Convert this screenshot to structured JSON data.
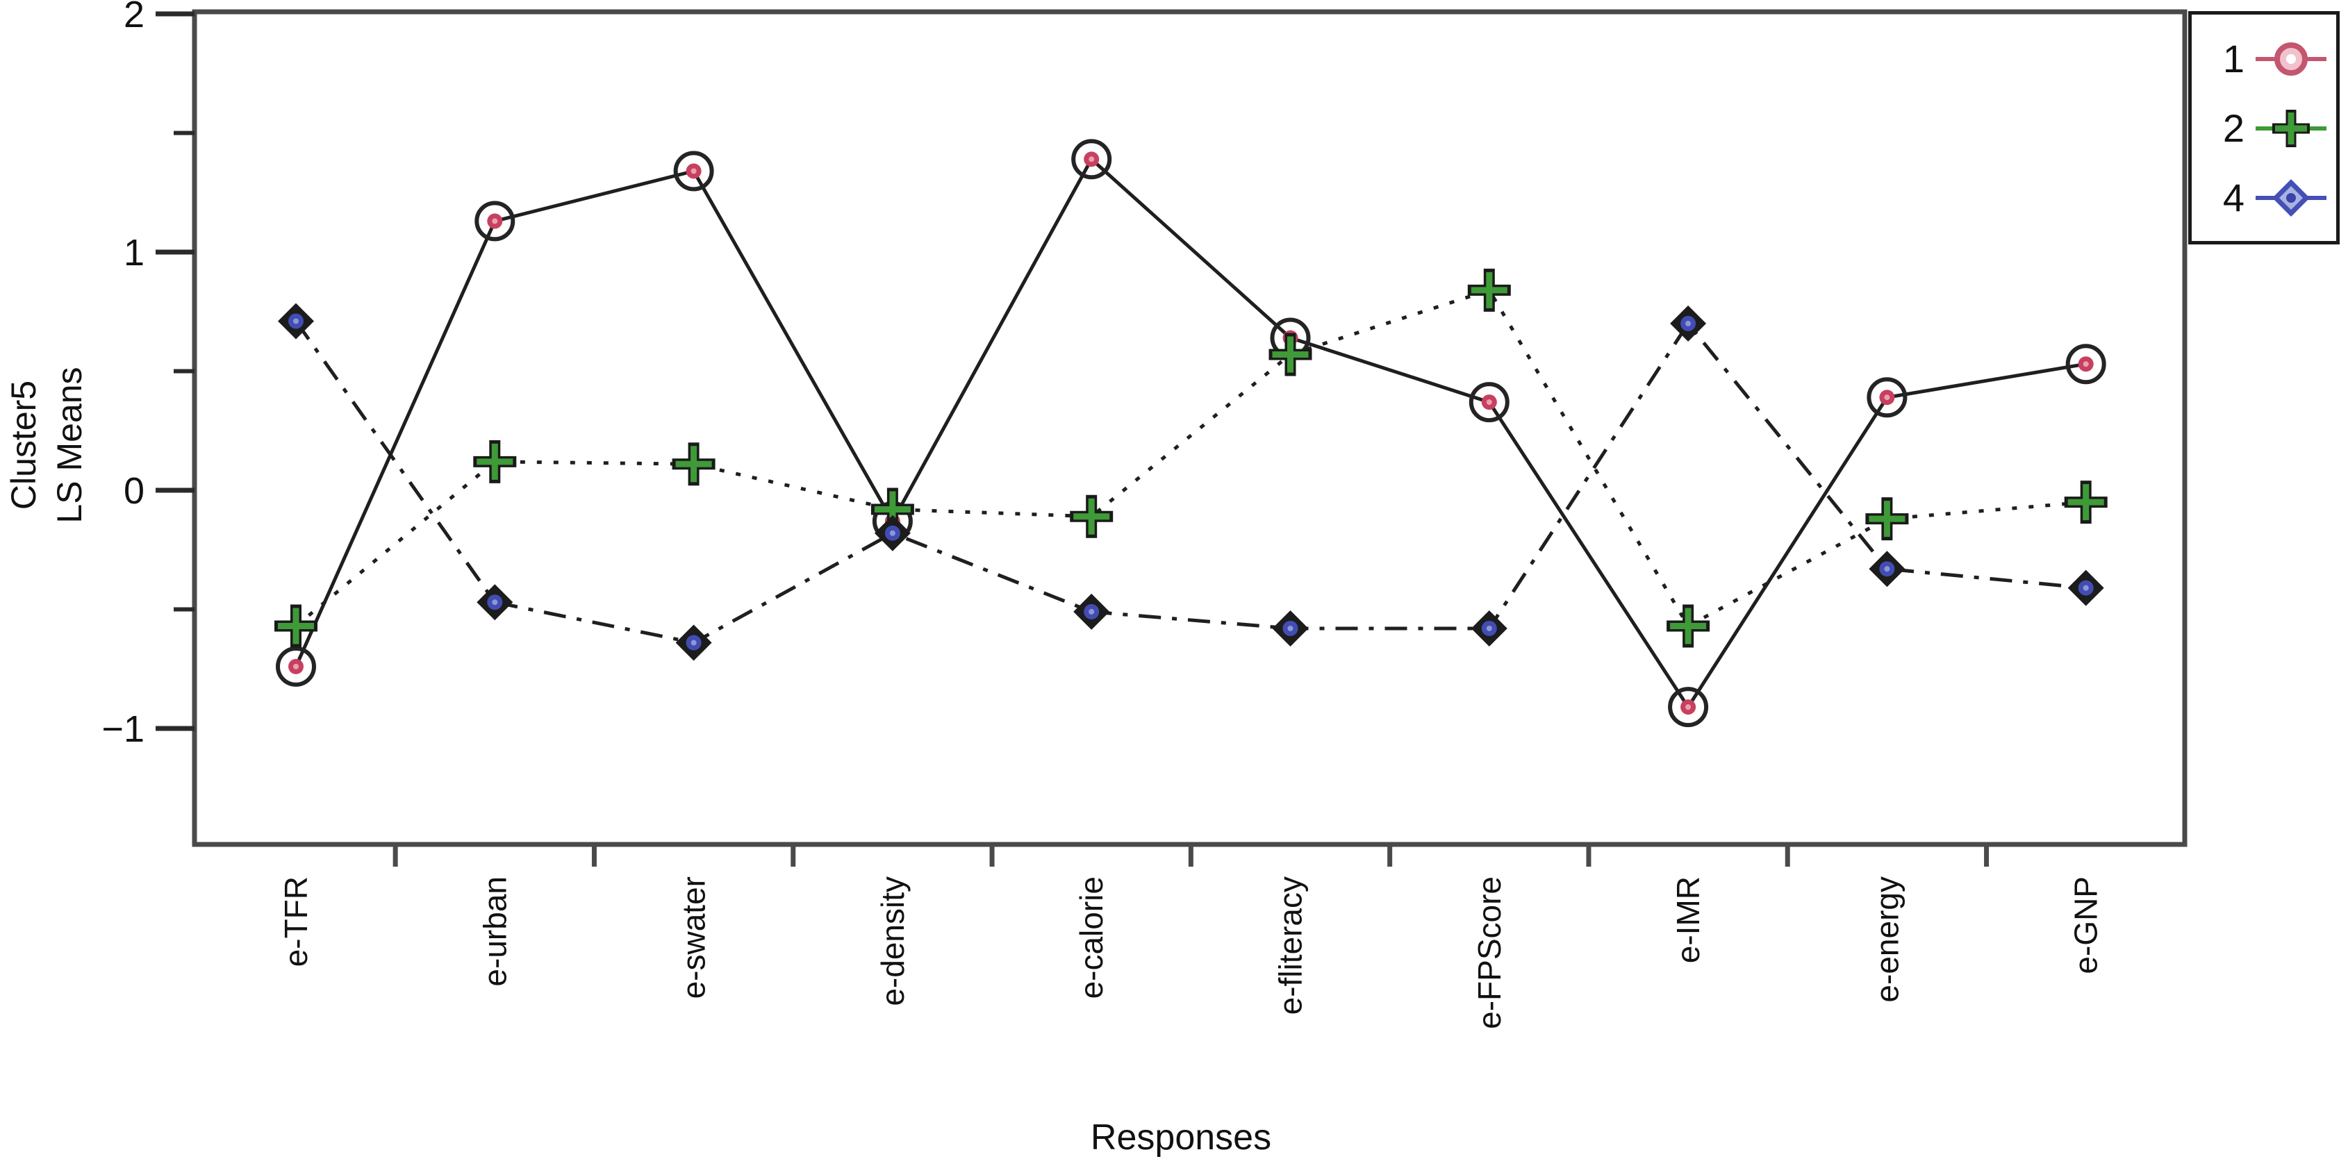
{
  "figure": {
    "y_axis_label_line1": "Cluster5",
    "y_axis_label_line2": "LS Means",
    "x_axis_label": "Responses"
  },
  "legend": {
    "position": "top-right",
    "entries": [
      {
        "label": "1",
        "marker": "circle",
        "color": "#c4566f"
      },
      {
        "label": "2",
        "marker": "plus",
        "color": "#3f9a38"
      },
      {
        "label": "4",
        "marker": "diamond",
        "color": "#4450b5"
      }
    ]
  },
  "colors": {
    "frame": "#4a4a4a",
    "line": "#1f1f1f",
    "tick": "#2a2a2a",
    "text": "#111111",
    "marker_red": "#c8405f",
    "marker_green": "#3f9a38",
    "marker_blue": "#424db3"
  },
  "chart_data": {
    "type": "line",
    "title": "",
    "xlabel": "Responses",
    "ylabel": "Cluster5 LS Means",
    "grid": false,
    "legend_position": "top-right",
    "ylim": [
      -1.49,
      2.01
    ],
    "yticks": [
      -1,
      0,
      1,
      2
    ],
    "yticks_minor": [
      -0.5,
      0.5,
      1.5
    ],
    "categories": [
      "e-TFR",
      "e-urban",
      "e-swater",
      "e-density",
      "e-calorie",
      "e-fliteracy",
      "e-FPScore",
      "e-IMR",
      "e-energy",
      "e-GNP"
    ],
    "series": [
      {
        "name": "1",
        "marker": "circle",
        "marker_color": "#c8405f",
        "line_style": "solid",
        "values": [
          -0.74,
          1.13,
          1.34,
          -0.13,
          1.39,
          0.64,
          0.37,
          -0.91,
          0.39,
          0.53
        ]
      },
      {
        "name": "2",
        "marker": "plus",
        "marker_color": "#3f9a38",
        "line_style": "dotted",
        "values": [
          -0.57,
          0.12,
          0.11,
          -0.08,
          -0.11,
          0.57,
          0.84,
          -0.57,
          -0.12,
          -0.05
        ]
      },
      {
        "name": "4",
        "marker": "diamond",
        "marker_color": "#424db3",
        "line_style": "dashdot",
        "values": [
          0.71,
          -0.47,
          -0.64,
          -0.18,
          -0.51,
          -0.58,
          -0.58,
          0.7,
          -0.33,
          -0.41
        ]
      }
    ]
  }
}
